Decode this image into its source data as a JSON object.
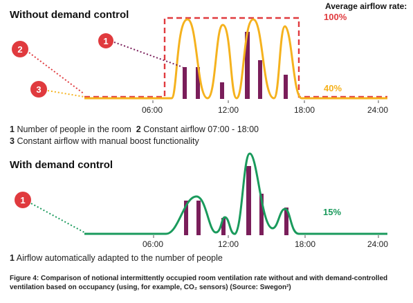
{
  "top": {
    "title": "Without demand control",
    "avg_label": "Average airflow rate:",
    "pct_red": "100%",
    "pct_orange": "40%",
    "ticks": [
      "06:00",
      "12:00",
      "18:00",
      "24:00"
    ],
    "markers": [
      "1",
      "2",
      "3"
    ],
    "legend": {
      "l1_num": "1",
      "l1_text": "Number of people in the room",
      "l2_num": "2",
      "l2_text": "Constant airflow 07:00 - 18:00",
      "l3_num": "3",
      "l3_text": "Constant airflow with manual boost functionality"
    }
  },
  "bottom": {
    "title": "With demand control",
    "pct_green": "15%",
    "ticks": [
      "06:00",
      "12:00",
      "18:00",
      "24:00"
    ],
    "markers": [
      "1"
    ],
    "legend": {
      "l1_num": "1",
      "l1_text": "Airflow automatically adapted to the number of people"
    }
  },
  "figure_caption": "Figure 4: Comparison of notional intermittently occupied room ventilation rate without and with demand-controlled ventilation based on occupancy (using, for example, CO₂ sensors) (Source: Swegon²)",
  "colors": {
    "red": "#e03a3e",
    "orange": "#f5b21e",
    "green": "#1a9a5c",
    "bar": "#7a1e5a",
    "marker": "#e03a3e"
  }
}
